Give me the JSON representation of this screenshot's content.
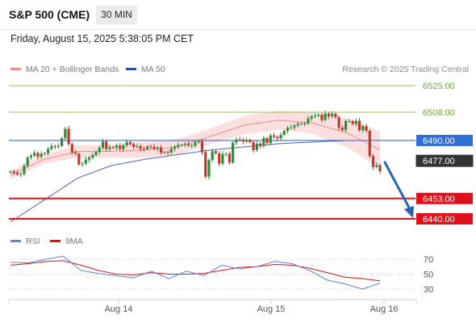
{
  "header": {
    "title": "S&P 500 (CME)",
    "timeframe": "30 MIN",
    "datetime": "Friday, August 15, 2025 5:38:05 PM CET"
  },
  "legend": {
    "ma20_label": "MA 20 + Bollinger Bands",
    "ma50_label": "MA 50",
    "copyright": "Research © 2025 Trading Central"
  },
  "rsi_legend": {
    "rsi_label": "RSI",
    "ma_label": "9MA"
  },
  "colors": {
    "up_candle": "#2e8b3a",
    "down_candle": "#c0392b",
    "bollinger_fill": "#fbd6d6",
    "ma20": "#ef8b8b",
    "ma50": "#4a63b8",
    "support": "#e0101a",
    "target_green": "#8fc25a",
    "pivot_blue": "#2f6fd6",
    "current_price_box": "#333333",
    "arrow": "#2b62b5",
    "rsi_line": "#5b84d6",
    "rsi_ma_line": "#e0101a"
  },
  "chart_data": {
    "type": "candlestick",
    "y_range": [
      6432,
      6538
    ],
    "x_labels": [
      "Aug 14",
      "Aug 15",
      "Aug 16"
    ],
    "levels": [
      {
        "value": 6525.0,
        "label": "6525.00",
        "kind": "target"
      },
      {
        "value": 6508.0,
        "label": "6508.00",
        "kind": "target"
      },
      {
        "value": 6490.0,
        "label": "6490.00",
        "kind": "pivot"
      },
      {
        "value": 6477.0,
        "label": "6477.00",
        "kind": "current"
      },
      {
        "value": 6453.0,
        "label": "6453.00",
        "kind": "support"
      },
      {
        "value": 6440.0,
        "label": "6440.00",
        "kind": "support"
      }
    ],
    "close_series": [
      6470.1,
      6469.3,
      6468.4,
      6468.6,
      6473.8,
      6479.2,
      6480.3,
      6482.1,
      6479.6,
      6481.5,
      6481.8,
      6484.6,
      6486.4,
      6486.0,
      6486.5,
      6491.4,
      6497.4,
      6487.7,
      6482.4,
      6481.6,
      6474.7,
      6475.2,
      6477.8,
      6479.1,
      6480.6,
      6482.6,
      6485.3,
      6489.3,
      6484.6,
      6485.7,
      6485.4,
      6486.7,
      6484.5,
      6486.9,
      6489.0,
      6487.6,
      6485.9,
      6486.4,
      6484.6,
      6484.5,
      6486.2,
      6486.1,
      6484.7,
      6485.5,
      6482.2,
      6482.6,
      6482.2,
      6484.7,
      6486.0,
      6487.2,
      6487.2,
      6487.8,
      6486.8,
      6486.8,
      6488.8,
      6489.4,
      6482.5,
      6466.9,
      6477.5,
      6483.2,
      6481.8,
      6475.2,
      6481.4,
      6481.5,
      6475.9,
      6488.6,
      6490.6,
      6490.5,
      6489.3,
      6490.2,
      6488.9,
      6483.8,
      6488.0,
      6486.5,
      6491.5,
      6488.3,
      6493.2,
      6492.3,
      6491.4,
      6493.6,
      6496.1,
      6498.0,
      6498.4,
      6499.6,
      6500.6,
      6500.7,
      6500.9,
      6503.9,
      6505.3,
      6505.8,
      6506.4,
      6503.0,
      6507.2,
      6505.4,
      6507.1,
      6504.8,
      6498.1,
      6496.7,
      6502.4,
      6502.4,
      6500.5,
      6502.6,
      6496.5,
      6499.1,
      6496.2,
      6480.0,
      6473.1,
      6474.2,
      6470.4
    ],
    "ma20_approx": [
      6468,
      6478,
      6483,
      6483,
      6484,
      6486,
      6493,
      6500,
      6503,
      6501,
      6495,
      6484
    ],
    "ma50_approx": [
      6438,
      6452,
      6466,
      6474,
      6478,
      6481,
      6484,
      6486,
      6488,
      6489,
      6490,
      6490
    ],
    "rsi": {
      "levels": [
        70,
        50,
        30
      ],
      "range": [
        20,
        80
      ],
      "rsi_approx": [
        66,
        65,
        70,
        74,
        55,
        51,
        48,
        45,
        54,
        44,
        54,
        48,
        62,
        57,
        60,
        67,
        64,
        55,
        42,
        37,
        30,
        38
      ],
      "ma_approx": [
        62,
        64,
        67,
        68,
        62,
        55,
        50,
        49,
        52,
        50,
        50,
        51,
        55,
        59,
        60,
        63,
        62,
        58,
        52,
        46,
        44,
        41
      ]
    }
  }
}
